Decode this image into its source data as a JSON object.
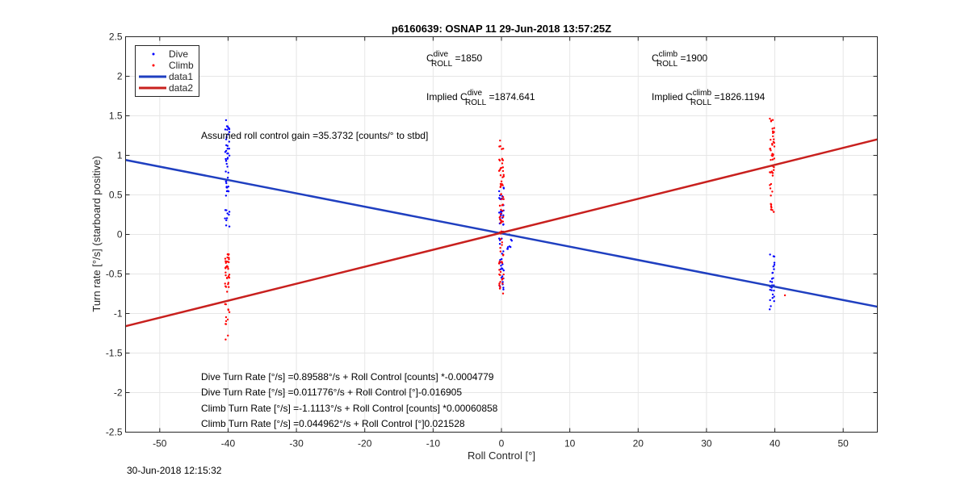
{
  "chart_data": {
    "type": "scatter",
    "title": "p6160639: OSNAP 11 29-Jun-2018 13:57:25Z",
    "xlabel": "Roll Control [°]",
    "ylabel": "Turn rate [°/s] (starboard positive)",
    "xlim": [
      -55,
      55
    ],
    "ylim": [
      -2.5,
      2.5
    ],
    "xticks": [
      -50,
      -40,
      -30,
      -20,
      -10,
      0,
      10,
      20,
      30,
      40,
      50
    ],
    "yticks": [
      -2.5,
      -2,
      -1.5,
      -1,
      -0.5,
      0,
      0.5,
      1,
      1.5,
      2,
      2.5
    ],
    "grid": true,
    "legend_position": "top-left",
    "colors": {
      "dive": "#0000ff",
      "climb": "#ff0000",
      "data1": "#1f3fc0",
      "data2": "#c8201e"
    },
    "series": [
      {
        "name": "Dive",
        "marker": "point",
        "clusters": [
          {
            "x": -40.1,
            "y_min": 0.1,
            "y_max": 1.45
          },
          {
            "x": 0.0,
            "y_min": -0.7,
            "y_max": 0.6
          },
          {
            "x": 1.2,
            "y_min": -0.2,
            "y_max": 0.0
          },
          {
            "x": 39.6,
            "y_min": -0.95,
            "y_max": -0.25
          }
        ]
      },
      {
        "name": "Climb",
        "marker": "point",
        "clusters": [
          {
            "x": -40.1,
            "y_min": -1.33,
            "y_max": -0.2
          },
          {
            "x": 0.0,
            "y_min": -0.75,
            "y_max": 1.2
          },
          {
            "x": 39.6,
            "y_min": 0.25,
            "y_max": 1.47
          },
          {
            "x": 41.3,
            "y_min": -0.77,
            "y_max": -0.77
          }
        ]
      },
      {
        "name": "data1",
        "type": "line",
        "x": [
          -55,
          55
        ],
        "y": [
          0.941,
          -0.914
        ]
      },
      {
        "name": "data2",
        "type": "line",
        "x": [
          -55,
          55
        ],
        "y": [
          -1.16,
          1.202
        ]
      }
    ],
    "annotations": {
      "c_dive": {
        "pre": "C",
        "sup": "dive",
        "sub": "ROLL",
        "post": " =1850"
      },
      "c_climb": {
        "pre": "C",
        "sup": "climb",
        "sub": "ROLL",
        "post": " =1900"
      },
      "implied_dive": {
        "pre": "Implied C",
        "sup": "dive",
        "sub": "ROLL",
        "post": " =1874.641"
      },
      "implied_climb": {
        "pre": "Implied C",
        "sup": "climb",
        "sub": "ROLL",
        "post": " =1826.1194"
      },
      "assumed_gain": "Assumed roll control gain =35.3732 [counts/° to stbd]",
      "equations": [
        "Dive Turn Rate [°/s] =0.89588°/s + Roll Control [counts] *-0.0004779",
        "Dive Turn Rate [°/s] =0.011776°/s + Roll Control [°]-0.016905",
        "Climb Turn Rate [°/s] =-1.1113°/s + Roll Control [counts] *0.00060858",
        "Climb Turn Rate [°/s] =0.044962°/s + Roll Control [°]0.021528"
      ]
    }
  },
  "footer": {
    "timestamp": "30-Jun-2018 12:15:32"
  }
}
